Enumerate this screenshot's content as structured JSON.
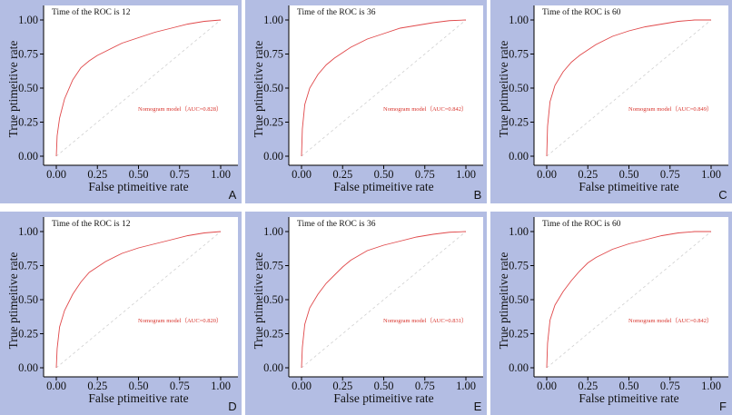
{
  "colors": {
    "panel_bg": "#b3bde3",
    "roc_line": "#e0484a",
    "diagonal": "#cfcfcf"
  },
  "chart_data": [
    {
      "type": "line",
      "panel": "A",
      "title": "Time of the ROC is 12",
      "xlabel": "False ptimeitive rate",
      "ylabel": "True ptimeitive rate",
      "xlim": [
        0,
        1
      ],
      "ylim": [
        0,
        1
      ],
      "xticks": [
        "0.00",
        "0.25",
        "0.50",
        "0.75",
        "1.00"
      ],
      "yticks": [
        "0.00",
        "0.25",
        "0.50",
        "0.75",
        "1.00"
      ],
      "annotation": "Nomogram model（AUC=0.828）",
      "series": [
        {
          "x": [
            0,
            0.005,
            0.02,
            0.05,
            0.1,
            0.15,
            0.2,
            0.25,
            0.3,
            0.4,
            0.5,
            0.6,
            0.7,
            0.8,
            0.9,
            1.0
          ],
          "y": [
            0,
            0.15,
            0.28,
            0.42,
            0.56,
            0.65,
            0.7,
            0.74,
            0.77,
            0.83,
            0.87,
            0.91,
            0.94,
            0.97,
            0.99,
            1.0
          ]
        }
      ]
    },
    {
      "type": "line",
      "panel": "B",
      "title": "Time of the ROC is 36",
      "xlabel": "False ptimeitive rate",
      "ylabel": "True ptimeitive rate",
      "xlim": [
        0,
        1
      ],
      "ylim": [
        0,
        1
      ],
      "xticks": [
        "0.00",
        "0.25",
        "0.50",
        "0.75",
        "1.00"
      ],
      "yticks": [
        "0.00",
        "0.25",
        "0.50",
        "0.75",
        "1.00"
      ],
      "annotation": "Nomogram model（AUC=0.842）",
      "series": [
        {
          "x": [
            0,
            0.005,
            0.02,
            0.05,
            0.1,
            0.15,
            0.2,
            0.25,
            0.3,
            0.4,
            0.5,
            0.6,
            0.7,
            0.8,
            0.9,
            1.0
          ],
          "y": [
            0,
            0.2,
            0.38,
            0.5,
            0.6,
            0.67,
            0.72,
            0.76,
            0.8,
            0.86,
            0.9,
            0.94,
            0.96,
            0.98,
            0.995,
            1.0
          ]
        }
      ]
    },
    {
      "type": "line",
      "panel": "C",
      "title": "Time of the ROC is 60",
      "xlabel": "False ptimeitive rate",
      "ylabel": "True ptimeitive rate",
      "xlim": [
        0,
        1
      ],
      "ylim": [
        0,
        1
      ],
      "xticks": [
        "0.00",
        "0.25",
        "0.50",
        "0.75",
        "1.00"
      ],
      "yticks": [
        "0.00",
        "0.25",
        "0.50",
        "0.75",
        "1.00"
      ],
      "annotation": "Nomogram model（AUC=0.849）",
      "series": [
        {
          "x": [
            0,
            0.005,
            0.02,
            0.05,
            0.1,
            0.15,
            0.2,
            0.25,
            0.3,
            0.4,
            0.5,
            0.6,
            0.7,
            0.8,
            0.9,
            1.0
          ],
          "y": [
            0,
            0.22,
            0.4,
            0.52,
            0.62,
            0.69,
            0.74,
            0.78,
            0.82,
            0.88,
            0.92,
            0.95,
            0.97,
            0.99,
            1.0,
            1.0
          ]
        }
      ]
    },
    {
      "type": "line",
      "panel": "D",
      "title": "Time of the ROC is 12",
      "xlabel": "False ptimeitive rate",
      "ylabel": "True ptimeitive rate",
      "xlim": [
        0,
        1
      ],
      "ylim": [
        0,
        1
      ],
      "xticks": [
        "0.00",
        "0.25",
        "0.50",
        "0.75",
        "1.00"
      ],
      "yticks": [
        "0.00",
        "0.25",
        "0.50",
        "0.75",
        "1.00"
      ],
      "annotation": "Nomogram model（AUC=0.820）",
      "series": [
        {
          "x": [
            0,
            0.005,
            0.02,
            0.05,
            0.1,
            0.15,
            0.2,
            0.25,
            0.3,
            0.4,
            0.5,
            0.6,
            0.7,
            0.8,
            0.9,
            1.0
          ],
          "y": [
            0,
            0.14,
            0.3,
            0.42,
            0.54,
            0.63,
            0.7,
            0.74,
            0.78,
            0.84,
            0.88,
            0.91,
            0.94,
            0.97,
            0.99,
            1.0
          ]
        }
      ]
    },
    {
      "type": "line",
      "panel": "E",
      "title": "Time of the ROC is 36",
      "xlabel": "False ptimeitive rate",
      "ylabel": "True ptimeitive rate",
      "xlim": [
        0,
        1
      ],
      "ylim": [
        0,
        1
      ],
      "xticks": [
        "0.00",
        "0.25",
        "0.50",
        "0.75",
        "1.00"
      ],
      "yticks": [
        "0.00",
        "0.25",
        "0.50",
        "0.75",
        "1.00"
      ],
      "annotation": "Nomogram model（AUC=0.831）",
      "series": [
        {
          "x": [
            0,
            0.005,
            0.02,
            0.05,
            0.1,
            0.15,
            0.2,
            0.25,
            0.3,
            0.4,
            0.5,
            0.6,
            0.7,
            0.8,
            0.9,
            1.0
          ],
          "y": [
            0,
            0.15,
            0.32,
            0.44,
            0.54,
            0.62,
            0.68,
            0.74,
            0.79,
            0.86,
            0.9,
            0.93,
            0.96,
            0.98,
            0.995,
            1.0
          ]
        }
      ]
    },
    {
      "type": "line",
      "panel": "F",
      "title": "Time of the ROC is 60",
      "xlabel": "False ptimeitive rate",
      "ylabel": "True ptimeitive rate",
      "xlim": [
        0,
        1
      ],
      "ylim": [
        0,
        1
      ],
      "xticks": [
        "0.00",
        "0.25",
        "0.50",
        "0.75",
        "1.00"
      ],
      "yticks": [
        "0.00",
        "0.25",
        "0.50",
        "0.75",
        "1.00"
      ],
      "annotation": "Nomogram model（AUC=0.842）",
      "series": [
        {
          "x": [
            0,
            0.005,
            0.02,
            0.05,
            0.1,
            0.15,
            0.2,
            0.25,
            0.3,
            0.4,
            0.5,
            0.6,
            0.7,
            0.8,
            0.9,
            1.0
          ],
          "y": [
            0,
            0.18,
            0.35,
            0.46,
            0.56,
            0.64,
            0.71,
            0.77,
            0.81,
            0.87,
            0.91,
            0.94,
            0.97,
            0.99,
            1.0,
            1.0
          ]
        }
      ]
    }
  ]
}
